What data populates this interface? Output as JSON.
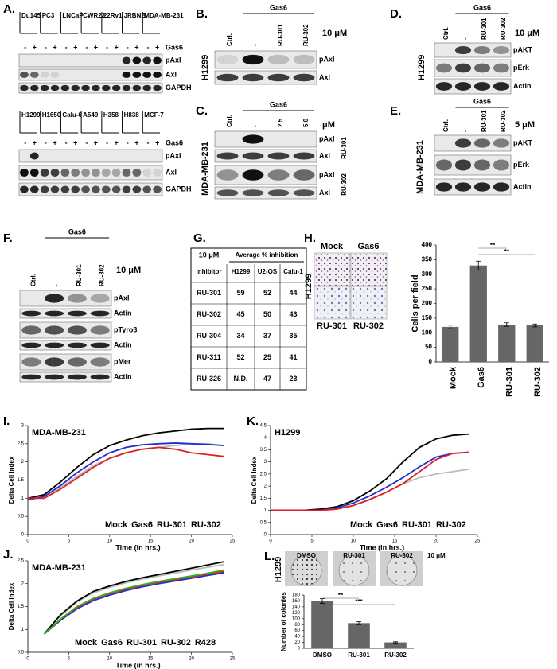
{
  "panels": {
    "A": {
      "letter": "A.",
      "top": {
        "lanes": [
          "Du145",
          "PC3",
          "LNCaP",
          "CWR22",
          "22Rv1",
          "JRBNB",
          "MDA-MB-231"
        ],
        "signs": [
          "-",
          "+"
        ],
        "treatment": "Gas6",
        "rows": [
          "pAxl",
          "Axl",
          "GAPDH"
        ]
      },
      "bottom": {
        "lanes": [
          "H1299",
          "H1650",
          "Calu-6",
          "A549",
          "H358",
          "H838",
          "MCF-7"
        ],
        "signs": [
          "-",
          "+"
        ],
        "treatment": "Gas6",
        "rows": [
          "pAxl",
          "Axl",
          "GAPDH"
        ]
      }
    },
    "B": {
      "letter": "B.",
      "treatment": "Gas6",
      "lanes": [
        "Ctrl.",
        "-",
        "RU-301",
        "RU-302"
      ],
      "dose": "10 μM",
      "cell_line": "H1299",
      "rows": [
        "pAxl",
        "Axl"
      ]
    },
    "C": {
      "letter": "C.",
      "treatment": "Gas6",
      "lanes": [
        "Ctrl.",
        "-",
        "2.5",
        "5.0"
      ],
      "dose": "μM",
      "cell_line": "MDA-MB-231",
      "rows": [
        "pAxl",
        "Axl",
        "pAxl",
        "Axl"
      ],
      "groups": [
        "RU-301",
        "RU-302"
      ]
    },
    "D": {
      "letter": "D.",
      "treatment": "Gas6",
      "lanes": [
        "Ctrl.",
        "-",
        "RU-301",
        "RU-302"
      ],
      "dose": "10 μM",
      "cell_line": "H1299",
      "rows": [
        "pAKT",
        "pErk",
        "Actin"
      ]
    },
    "E": {
      "letter": "E.",
      "treatment": "Gas6",
      "lanes": [
        "Ctrl.",
        "-",
        "RU-301",
        "RU-302"
      ],
      "dose": "5 μM",
      "cell_line": "MDA-MB-231",
      "rows": [
        "pAKT",
        "pErk",
        "Actin"
      ]
    },
    "F": {
      "letter": "F.",
      "treatment": "Gas6",
      "lanes": [
        "Ctrl.",
        "-",
        "RU-301",
        "RU-302"
      ],
      "dose": "10 μM",
      "rows": [
        "pAxl",
        "Actin",
        "pTyro3",
        "Actin",
        "pMer",
        "Actin"
      ]
    },
    "G": {
      "letter": "G.",
      "dose": "10 μM",
      "group_header": "Average % inhibition",
      "columns": [
        "Inhibitor",
        "H1299",
        "U2-OS",
        "Calu-1"
      ],
      "rows": [
        [
          "RU-301",
          59,
          52,
          44
        ],
        [
          "RU-302",
          45,
          50,
          43
        ],
        [
          "RU-304",
          34,
          37,
          35
        ],
        [
          "RU-311",
          52,
          25,
          41
        ],
        [
          "RU-326",
          "N.D.",
          47,
          23
        ]
      ]
    },
    "H": {
      "letter": "H.",
      "conditions": [
        "Mock",
        "Gas6",
        "RU-301",
        "RU-302"
      ],
      "cell_line": "H1299"
    },
    "I": {
      "letter": "I."
    },
    "K": {
      "letter": "K."
    },
    "J": {
      "letter": "J."
    },
    "L": {
      "letter": "L.",
      "conditions": [
        "DMSO",
        "RU-301",
        "RU-302"
      ],
      "dose": "10 μM",
      "cell_line": "H1299"
    }
  },
  "chart_data": [
    {
      "type": "bar",
      "y_label": "Cells per field",
      "categories": [
        "Mock",
        "Gas6",
        "RU-301",
        "RU-302"
      ],
      "values": [
        120,
        330,
        128,
        125
      ],
      "errors": [
        6,
        15,
        6,
        5
      ],
      "color": "#666666",
      "ylim": [
        0,
        400
      ],
      "yticks": [
        0,
        50,
        100,
        150,
        200,
        250,
        300,
        350,
        400
      ],
      "annotations": [
        "**",
        "**"
      ]
    },
    {
      "type": "line",
      "title": "MDA-MB-231",
      "x_label": "Time (in hrs.)",
      "y_label": "Delta Cell Index",
      "x": [
        0,
        2,
        4,
        6,
        8,
        10,
        12,
        14,
        16,
        18,
        20,
        22,
        24
      ],
      "xlim": [
        0,
        25
      ],
      "xticks": [
        0,
        5,
        10,
        15,
        20,
        25
      ],
      "ylim": [
        0,
        3
      ],
      "yticks": [
        0,
        0.5,
        1,
        1.5,
        2,
        2.5,
        3
      ],
      "legend": "lower right",
      "series": [
        {
          "name": "Mock",
          "color": "#bbbbbb",
          "values": [
            1,
            1.05,
            1.3,
            1.6,
            1.9,
            2.1,
            2.25,
            2.35,
            2.4,
            2.45,
            2.5,
            2.5,
            2.45
          ]
        },
        {
          "name": "Gas6",
          "color": "#000000",
          "values": [
            1,
            1.1,
            1.45,
            1.85,
            2.2,
            2.45,
            2.6,
            2.72,
            2.8,
            2.85,
            2.9,
            2.92,
            2.92
          ]
        },
        {
          "name": "RU-301",
          "color": "#1f2fd0",
          "values": [
            0.95,
            1.05,
            1.35,
            1.7,
            2.0,
            2.25,
            2.4,
            2.47,
            2.5,
            2.52,
            2.5,
            2.48,
            2.45
          ]
        },
        {
          "name": "RU-302",
          "color": "#e02020",
          "values": [
            1,
            1.0,
            1.25,
            1.55,
            1.85,
            2.1,
            2.25,
            2.35,
            2.4,
            2.35,
            2.25,
            2.2,
            2.15
          ]
        }
      ]
    },
    {
      "type": "line",
      "title": "H1299",
      "x_label": "Time (in hrs.)",
      "y_label": "Delta Cell Index",
      "x": [
        0,
        2,
        4,
        6,
        8,
        10,
        12,
        14,
        16,
        18,
        20,
        22,
        24
      ],
      "xlim": [
        0,
        25
      ],
      "xticks": [
        0,
        5,
        10,
        15,
        20,
        25
      ],
      "ylim": [
        0,
        4.5
      ],
      "yticks": [
        0,
        0.5,
        1,
        1.5,
        2,
        2.5,
        3,
        3.5,
        4,
        4.5
      ],
      "legend": "lower right",
      "series": [
        {
          "name": "Mock",
          "color": "#bbbbbb",
          "values": [
            1,
            1,
            1,
            1,
            1.05,
            1.2,
            1.45,
            1.75,
            2.1,
            2.35,
            2.5,
            2.6,
            2.7
          ]
        },
        {
          "name": "Gas6",
          "color": "#000000",
          "values": [
            1,
            1,
            1,
            1.05,
            1.15,
            1.4,
            1.8,
            2.3,
            3.0,
            3.6,
            3.95,
            4.1,
            4.15
          ]
        },
        {
          "name": "RU-301",
          "color": "#1f2fd0",
          "values": [
            1,
            1,
            1,
            1,
            1.1,
            1.3,
            1.6,
            1.95,
            2.35,
            2.8,
            3.2,
            3.35,
            3.4
          ]
        },
        {
          "name": "RU-302",
          "color": "#e02020",
          "values": [
            1,
            1,
            1,
            1,
            1.05,
            1.2,
            1.45,
            1.75,
            2.1,
            2.6,
            3.1,
            3.35,
            3.4
          ]
        }
      ]
    },
    {
      "type": "line",
      "title": "MDA-MB-231",
      "x_label": "Time (in hrs.)",
      "y_label": "Delta Cell Index",
      "x": [
        2,
        4,
        6,
        8,
        10,
        12,
        14,
        16,
        18,
        20,
        22,
        24
      ],
      "xlim": [
        0,
        25
      ],
      "xticks": [
        0,
        5,
        10,
        15,
        20,
        25
      ],
      "ylim": [
        0.5,
        2.5
      ],
      "yticks": [
        0.5,
        1,
        1.5,
        2,
        2.5
      ],
      "legend": "lower right",
      "series": [
        {
          "name": "Mock",
          "color": "#bbbbbb",
          "values": [
            0.9,
            1.3,
            1.6,
            1.8,
            1.92,
            2.02,
            2.1,
            2.17,
            2.23,
            2.3,
            2.36,
            2.42
          ]
        },
        {
          "name": "Gas6",
          "color": "#000000",
          "values": [
            0.9,
            1.32,
            1.62,
            1.83,
            1.95,
            2.05,
            2.13,
            2.2,
            2.27,
            2.34,
            2.41,
            2.48
          ]
        },
        {
          "name": "RU-301",
          "color": "#1f2fd0",
          "values": [
            0.9,
            1.2,
            1.45,
            1.63,
            1.75,
            1.85,
            1.93,
            2.0,
            2.06,
            2.12,
            2.18,
            2.24
          ]
        },
        {
          "name": "RU-302",
          "color": "#e02020",
          "values": [
            0.9,
            1.22,
            1.48,
            1.66,
            1.78,
            1.88,
            1.96,
            2.03,
            2.09,
            2.15,
            2.21,
            2.27
          ]
        },
        {
          "name": "R428",
          "color": "#22bb22",
          "values": [
            0.9,
            1.23,
            1.5,
            1.68,
            1.8,
            1.9,
            1.98,
            2.05,
            2.11,
            2.17,
            2.23,
            2.3
          ]
        }
      ]
    },
    {
      "type": "bar",
      "y_label": "Number of colonies",
      "categories": [
        "DMSO",
        "RU-301",
        "RU-302"
      ],
      "values": [
        160,
        85,
        20
      ],
      "errors": [
        8,
        5,
        2
      ],
      "color": "#666666",
      "ylim": [
        0,
        180
      ],
      "yticks": [
        0,
        20,
        40,
        60,
        80,
        100,
        120,
        140,
        160,
        180
      ],
      "annotations": [
        "**",
        "***"
      ]
    }
  ]
}
